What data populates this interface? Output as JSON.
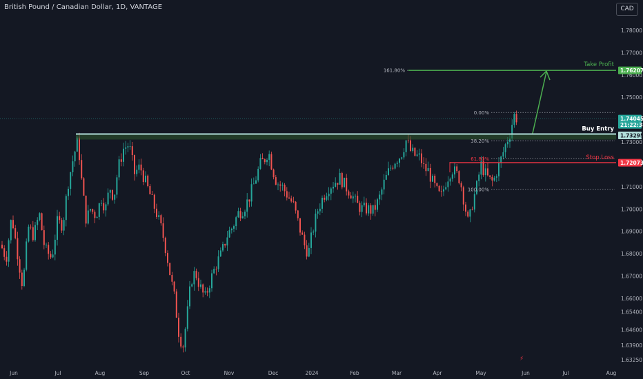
{
  "header": {
    "title": "British Pound / Canadian Dollar, 1D, VANTAGE",
    "currency_button": "CAD"
  },
  "colors": {
    "background": "#141823",
    "up": "#26a69a",
    "down": "#ef5350",
    "take_profit": "#4caf50",
    "stop_loss": "#f23645",
    "entry": "#b2dfdb",
    "current": "#26a69a"
  },
  "chart_data": {
    "type": "candlestick",
    "ylim": [
      1.63,
      1.79
    ],
    "y_ticks": [
      "1.78000",
      "1.77000",
      "1.76000",
      "1.75000",
      "1.74000",
      "1.73000",
      "1.72000",
      "1.71000",
      "1.70000",
      "1.69000",
      "1.68000",
      "1.67000",
      "1.66000",
      "1.65400",
      "1.64600",
      "1.63900",
      "1.63250"
    ],
    "x_ticks": [
      "Jun",
      "Jul",
      "Aug",
      "Sep",
      "Oct",
      "Nov",
      "Dec",
      "2024",
      "Feb",
      "Mar",
      "Apr",
      "May",
      "Jun",
      "Jul",
      "Aug"
    ],
    "anchors": [
      {
        "x": 0,
        "y": 1.684
      },
      {
        "x": 8,
        "y": 1.678
      },
      {
        "x": 16,
        "y": 1.697
      },
      {
        "x": 24,
        "y": 1.681
      },
      {
        "x": 32,
        "y": 1.665
      },
      {
        "x": 40,
        "y": 1.692
      },
      {
        "x": 48,
        "y": 1.688
      },
      {
        "x": 56,
        "y": 1.698
      },
      {
        "x": 64,
        "y": 1.682
      },
      {
        "x": 74,
        "y": 1.678
      },
      {
        "x": 82,
        "y": 1.694
      },
      {
        "x": 90,
        "y": 1.693
      },
      {
        "x": 98,
        "y": 1.712
      },
      {
        "x": 106,
        "y": 1.724
      },
      {
        "x": 112,
        "y": 1.731
      },
      {
        "x": 118,
        "y": 1.71
      },
      {
        "x": 124,
        "y": 1.695
      },
      {
        "x": 130,
        "y": 1.7
      },
      {
        "x": 138,
        "y": 1.697
      },
      {
        "x": 146,
        "y": 1.705
      },
      {
        "x": 152,
        "y": 1.7
      },
      {
        "x": 158,
        "y": 1.71
      },
      {
        "x": 164,
        "y": 1.705
      },
      {
        "x": 170,
        "y": 1.718
      },
      {
        "x": 178,
        "y": 1.727
      },
      {
        "x": 186,
        "y": 1.729
      },
      {
        "x": 194,
        "y": 1.716
      },
      {
        "x": 202,
        "y": 1.719
      },
      {
        "x": 210,
        "y": 1.712
      },
      {
        "x": 218,
        "y": 1.705
      },
      {
        "x": 226,
        "y": 1.698
      },
      {
        "x": 234,
        "y": 1.69
      },
      {
        "x": 240,
        "y": 1.681
      },
      {
        "x": 246,
        "y": 1.67
      },
      {
        "x": 252,
        "y": 1.66
      },
      {
        "x": 258,
        "y": 1.645
      },
      {
        "x": 264,
        "y": 1.638
      },
      {
        "x": 270,
        "y": 1.652
      },
      {
        "x": 276,
        "y": 1.668
      },
      {
        "x": 282,
        "y": 1.672
      },
      {
        "x": 288,
        "y": 1.666
      },
      {
        "x": 296,
        "y": 1.66
      },
      {
        "x": 304,
        "y": 1.668
      },
      {
        "x": 312,
        "y": 1.675
      },
      {
        "x": 320,
        "y": 1.68
      },
      {
        "x": 328,
        "y": 1.688
      },
      {
        "x": 336,
        "y": 1.692
      },
      {
        "x": 344,
        "y": 1.698
      },
      {
        "x": 352,
        "y": 1.7
      },
      {
        "x": 360,
        "y": 1.705
      },
      {
        "x": 368,
        "y": 1.712
      },
      {
        "x": 376,
        "y": 1.72
      },
      {
        "x": 382,
        "y": 1.722
      },
      {
        "x": 388,
        "y": 1.726
      },
      {
        "x": 394,
        "y": 1.718
      },
      {
        "x": 400,
        "y": 1.712
      },
      {
        "x": 408,
        "y": 1.71
      },
      {
        "x": 416,
        "y": 1.706
      },
      {
        "x": 424,
        "y": 1.702
      },
      {
        "x": 432,
        "y": 1.693
      },
      {
        "x": 440,
        "y": 1.684
      },
      {
        "x": 446,
        "y": 1.68
      },
      {
        "x": 452,
        "y": 1.69
      },
      {
        "x": 460,
        "y": 1.7
      },
      {
        "x": 468,
        "y": 1.706
      },
      {
        "x": 476,
        "y": 1.71
      },
      {
        "x": 484,
        "y": 1.712
      },
      {
        "x": 492,
        "y": 1.714
      },
      {
        "x": 500,
        "y": 1.71
      },
      {
        "x": 508,
        "y": 1.707
      },
      {
        "x": 516,
        "y": 1.702
      },
      {
        "x": 524,
        "y": 1.7
      },
      {
        "x": 532,
        "y": 1.7
      },
      {
        "x": 540,
        "y": 1.699
      },
      {
        "x": 548,
        "y": 1.704
      },
      {
        "x": 556,
        "y": 1.712
      },
      {
        "x": 564,
        "y": 1.718
      },
      {
        "x": 572,
        "y": 1.722
      },
      {
        "x": 580,
        "y": 1.724
      },
      {
        "x": 588,
        "y": 1.731
      },
      {
        "x": 594,
        "y": 1.726
      },
      {
        "x": 600,
        "y": 1.724
      },
      {
        "x": 608,
        "y": 1.723
      },
      {
        "x": 614,
        "y": 1.718
      },
      {
        "x": 620,
        "y": 1.717
      },
      {
        "x": 626,
        "y": 1.712
      },
      {
        "x": 632,
        "y": 1.708
      },
      {
        "x": 638,
        "y": 1.705
      },
      {
        "x": 646,
        "y": 1.713
      },
      {
        "x": 654,
        "y": 1.718
      },
      {
        "x": 660,
        "y": 1.716
      },
      {
        "x": 666,
        "y": 1.713
      },
      {
        "x": 672,
        "y": 1.703
      },
      {
        "x": 678,
        "y": 1.693
      },
      {
        "x": 684,
        "y": 1.703
      },
      {
        "x": 690,
        "y": 1.71
      },
      {
        "x": 696,
        "y": 1.72
      },
      {
        "x": 702,
        "y": 1.716
      },
      {
        "x": 708,
        "y": 1.713
      },
      {
        "x": 714,
        "y": 1.712
      },
      {
        "x": 720,
        "y": 1.718
      },
      {
        "x": 726,
        "y": 1.723
      },
      {
        "x": 732,
        "y": 1.729
      },
      {
        "x": 738,
        "y": 1.734
      },
      {
        "x": 744,
        "y": 1.742
      },
      {
        "x": 750,
        "y": 1.74
      }
    ],
    "current_price": "1.74045",
    "countdown": "21:22:38"
  },
  "fib": {
    "levels": [
      {
        "label": "161.80%",
        "value": 1.76207
      },
      {
        "label": "0.00%",
        "value": 1.7432
      },
      {
        "label": "38.20%",
        "value": 1.7305
      },
      {
        "label": "61.80%",
        "value": 1.7225
      },
      {
        "label": "100.00%",
        "value": 1.7088
      }
    ]
  },
  "trade": {
    "take_profit_label": "Take Profit",
    "take_profit_price": "1.76207",
    "buy_entry_label": "Buy Entry",
    "buy_entry_price": "1.73295",
    "stop_loss_label": "Stop Loss",
    "stop_loss_price": "1.72073"
  }
}
